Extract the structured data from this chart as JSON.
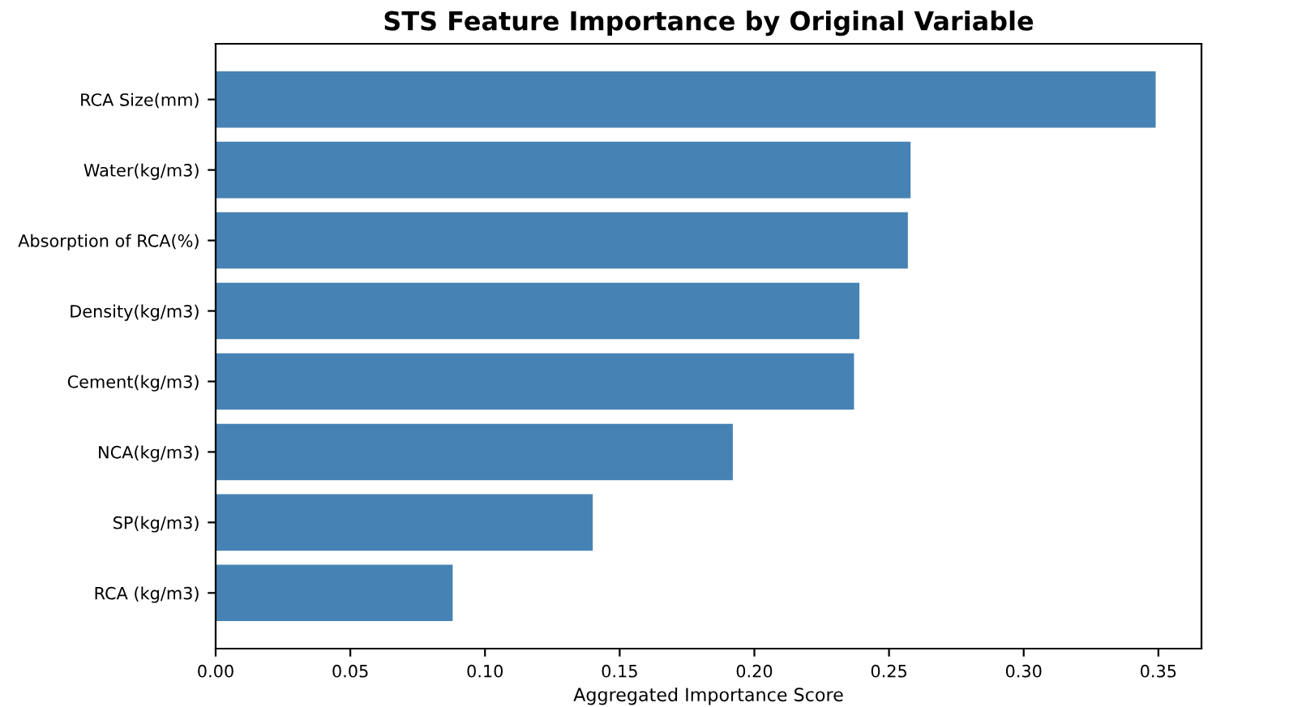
{
  "chart_data": {
    "type": "bar",
    "orientation": "horizontal",
    "title": "STS Feature Importance by Original Variable",
    "xlabel": "Aggregated Importance Score",
    "categories": [
      "RCA Size(mm)",
      "Water(kg/m3)",
      "Absorption of RCA(%)",
      "Density(kg/m3)",
      "Cement(kg/m3)",
      "NCA(kg/m3)",
      "SP(kg/m3)",
      "RCA (kg/m3)"
    ],
    "values": [
      0.349,
      0.258,
      0.257,
      0.239,
      0.237,
      0.192,
      0.14,
      0.088
    ],
    "color": "#4682b4",
    "xlim": [
      0,
      0.366
    ],
    "xticks": [
      {
        "value": 0,
        "label": "0.00"
      },
      0.05,
      {
        "value": 0.1,
        "label": "0.10"
      },
      0.15,
      {
        "value": 0.2,
        "label": "0.20"
      },
      0.25,
      {
        "value": 0.3,
        "label": "0.30"
      },
      0.35
    ],
    "grid": false
  }
}
